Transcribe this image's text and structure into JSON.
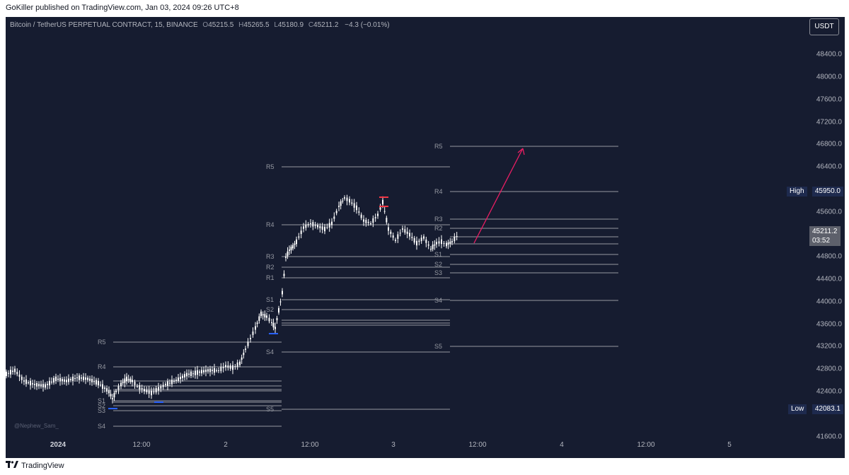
{
  "publisher": "GoKiller published on TradingView.com, Jan 03, 2024 09:26 UTC+8",
  "symbol": {
    "name": "Bitcoin / TetherUS PERPETUAL CONTRACT, 15, BINANCE",
    "open_label": "O",
    "open": "45215.5",
    "high_label": "H",
    "high": "45265.5",
    "low_label": "L",
    "low": "45180.9",
    "close_label": "C",
    "close": "45211.2",
    "change": "−4.3 (−0.01%)"
  },
  "currency_button": "USDT",
  "price_axis": {
    "ticks": [
      "48400.0",
      "48000.0",
      "47600.0",
      "47200.0",
      "46800.0",
      "46400.0",
      "45600.0",
      "44800.0",
      "44400.0",
      "44000.0",
      "43600.0",
      "43200.0",
      "42800.0",
      "42400.0",
      "41600.0"
    ],
    "high_label": "High",
    "high_value": "45950.0",
    "low_label": "Low",
    "low_value": "42083.1",
    "current_price": "45211.2",
    "countdown": "03:52"
  },
  "time_axis": [
    "2024",
    "12:00",
    "2",
    "12:00",
    "3",
    "12:00",
    "4",
    "12:00",
    "5"
  ],
  "watermark": "@Nephew_Sam_",
  "footer": {
    "brand": "TradingView",
    "logo": "tv-logo-icon"
  },
  "pivot_labels": {
    "day1": [
      "R5",
      "R4",
      "S1",
      "S2",
      "S3",
      "S4"
    ],
    "day2": [
      "R5",
      "R4",
      "R3",
      "R2",
      "R1",
      "S1",
      "S2",
      "S4",
      "S5"
    ],
    "day3": [
      "R5",
      "R4",
      "R3",
      "R2",
      "S1",
      "S2",
      "S3",
      "S4",
      "S5"
    ]
  },
  "colors": {
    "background": "#161c30",
    "candle": "#ffffff",
    "level_line": "#9598a1",
    "arrow": "#e91e63",
    "marker_blue": "#2962ff",
    "marker_red": "#f23645"
  }
}
